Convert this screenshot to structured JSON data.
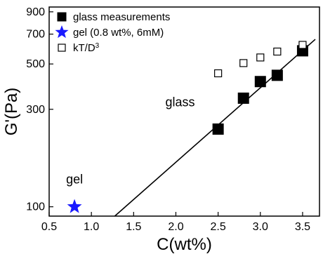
{
  "chart_data": {
    "type": "scatter",
    "xlabel": "C(wt%)",
    "ylabel": "G'(Pa)",
    "xlim": [
      0.5,
      3.7
    ],
    "ylim": [
      90,
      950
    ],
    "y_scale": "log",
    "x_ticks": [
      0.5,
      1.0,
      1.5,
      2.0,
      2.5,
      3.0,
      3.5
    ],
    "x_tick_labels": [
      "0.5",
      "1.0",
      "1.5",
      "2.0",
      "2.5",
      "3.0",
      "3.5"
    ],
    "y_ticks": [
      100,
      300,
      500,
      700,
      900
    ],
    "y_tick_labels": [
      "100",
      "300",
      "500",
      "700",
      "900"
    ],
    "grid": false,
    "legend_position": "top-left",
    "series": [
      {
        "name": "glass measurements",
        "marker": "filled-square",
        "color": "#000000",
        "points": [
          {
            "x": 2.5,
            "y": 240
          },
          {
            "x": 2.8,
            "y": 340
          },
          {
            "x": 3.0,
            "y": 410
          },
          {
            "x": 3.2,
            "y": 440
          },
          {
            "x": 3.5,
            "y": 580
          }
        ]
      },
      {
        "name": "gel (0.8 wt%, 6mM)",
        "marker": "star",
        "color": "#1a1aff",
        "points": [
          {
            "x": 0.8,
            "y": 100
          }
        ]
      },
      {
        "name": "kT/D",
        "name_superscript": "3",
        "marker": "open-square",
        "color": "#000000",
        "points": [
          {
            "x": 2.5,
            "y": 450
          },
          {
            "x": 2.8,
            "y": 505
          },
          {
            "x": 3.0,
            "y": 538
          },
          {
            "x": 3.2,
            "y": 575
          },
          {
            "x": 3.5,
            "y": 620
          }
        ]
      }
    ],
    "fit_line": {
      "color": "#000000",
      "points": [
        {
          "x": 1.25,
          "y": 88
        },
        {
          "x": 3.65,
          "y": 660
        }
      ]
    },
    "annotations": [
      {
        "text": "glass",
        "x": 2.05,
        "y": 310
      },
      {
        "text": "gel",
        "x": 0.8,
        "y": 130
      }
    ]
  }
}
